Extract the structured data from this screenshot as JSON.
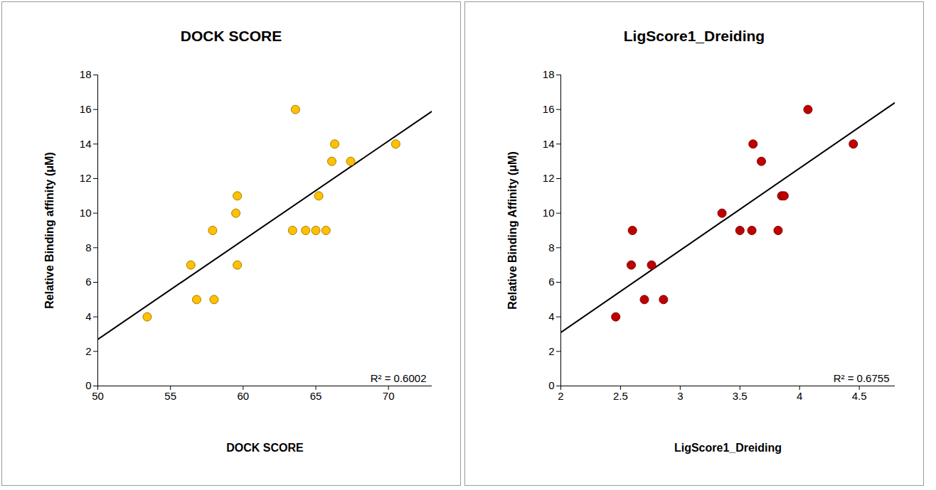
{
  "chart_data": [
    {
      "type": "scatter",
      "title": "DOCK SCORE",
      "x_label": "DOCK SCORE",
      "y_label": "Relative Binding affinity (μM)",
      "x": [
        53.4,
        56.4,
        56.8,
        57.9,
        58.0,
        59.5,
        59.6,
        59.6,
        63.4,
        63.6,
        64.3,
        65.0,
        65.2,
        65.7,
        66.1,
        66.3,
        67.4,
        70.5
      ],
      "values": [
        4,
        7,
        5,
        9,
        5,
        10,
        11,
        7,
        9,
        16,
        9,
        9,
        11,
        9,
        13,
        14,
        13,
        14
      ],
      "color": "#ffc000",
      "marker": "circle",
      "xlim": [
        50,
        73
      ],
      "xticks": [
        50,
        55,
        60,
        65,
        70
      ],
      "ylim": [
        0,
        18
      ],
      "yticks": [
        0,
        2,
        4,
        6,
        8,
        10,
        12,
        14,
        16,
        18
      ],
      "fit_line": {
        "x": [
          50,
          73
        ],
        "y": [
          2.7,
          15.9
        ]
      },
      "annotation": "R² = 0.6002"
    },
    {
      "type": "scatter",
      "title": "LigScore1_Dreiding",
      "x_label": "LigScore1_Dreiding",
      "y_label": "Relative Binding Affinity (μM)",
      "x": [
        2.46,
        2.59,
        2.6,
        2.7,
        2.76,
        2.86,
        3.35,
        3.5,
        3.6,
        3.61,
        3.68,
        3.82,
        3.85,
        3.87,
        4.07,
        4.45
      ],
      "values": [
        4,
        7,
        9,
        5,
        7,
        5,
        10,
        9,
        9,
        14,
        13,
        9,
        11,
        11,
        16,
        14
      ],
      "color": "#c00000",
      "marker": "circle",
      "xlim": [
        2,
        4.8
      ],
      "xticks": [
        2,
        2.5,
        3,
        3.5,
        4,
        4.5
      ],
      "ylim": [
        0,
        18
      ],
      "yticks": [
        0,
        2,
        4,
        6,
        8,
        10,
        12,
        14,
        16,
        18
      ],
      "fit_line": {
        "x": [
          2,
          4.8
        ],
        "y": [
          3.1,
          16.4
        ]
      },
      "annotation": "R² = 0.6755"
    }
  ]
}
